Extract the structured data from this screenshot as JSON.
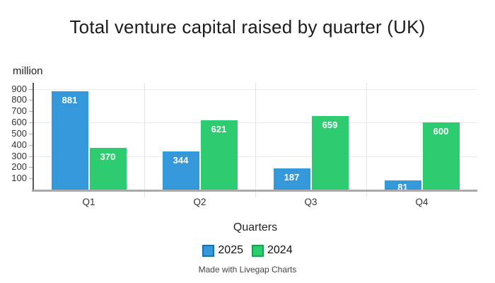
{
  "title": "Total venture capital raised by quarter (UK)",
  "y_axis_unit": "million",
  "x_axis_title": "Quarters",
  "footer_credit": "Made with Livegap Charts",
  "legend": {
    "items": [
      {
        "label": "2025",
        "color": "#3598DB",
        "border": "#1E6FA7"
      },
      {
        "label": "2024",
        "color": "#2ECC71",
        "border": "#1E9E55"
      }
    ]
  },
  "colors": {
    "blue": "#3598DB",
    "green": "#2ECC71",
    "blue_border": "#1E6FA7",
    "green_border": "#1E9E55",
    "grid": "#EBEBEB",
    "separator": "#E3E3E3",
    "y_axis_line": "#555555",
    "baseline": "#ABABAB",
    "tick": "#AAAAAA",
    "tick_text": "#333333",
    "bar_label_text": "#FFFFFF"
  },
  "chart_data": {
    "type": "bar",
    "title": "Total venture capital raised by quarter (UK)",
    "xlabel": "Quarters",
    "ylabel": "million",
    "categories": [
      "Q1",
      "Q2",
      "Q3",
      "Q4"
    ],
    "series": [
      {
        "name": "2025",
        "color": "#3598DB",
        "values": [
          881,
          344,
          187,
          81
        ]
      },
      {
        "name": "2024",
        "color": "#2ECC71",
        "values": [
          370,
          621,
          659,
          600
        ]
      }
    ],
    "ylim": [
      0,
      900
    ],
    "yticks": [
      100,
      200,
      300,
      400,
      500,
      600,
      700,
      800,
      900
    ],
    "gridlines_y": [
      300,
      600,
      900
    ],
    "grid": true,
    "data_labels": "inside-top",
    "legend_position": "bottom"
  }
}
